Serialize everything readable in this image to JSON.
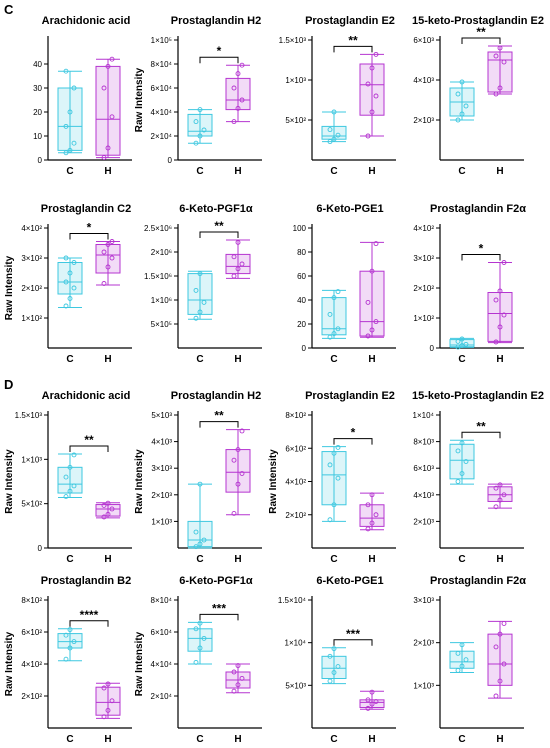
{
  "panels": [
    {
      "label": "C"
    },
    {
      "label": "D"
    }
  ],
  "colors": {
    "C": "#3ec8e0",
    "H": "#b535d0",
    "sig": "#000000"
  },
  "chart_data": [
    {
      "type": "box",
      "panel": "C",
      "title": "Arachidonic acid",
      "ylabel": "",
      "ylim": [
        0,
        50
      ],
      "ticks": [
        {
          "v": 0,
          "t": "0"
        },
        {
          "v": 10,
          "t": "10"
        },
        {
          "v": 20,
          "t": "20"
        },
        {
          "v": 30,
          "t": "30"
        },
        {
          "v": 40,
          "t": "40"
        }
      ],
      "categories": [
        "C",
        "H"
      ],
      "boxes": [
        {
          "min": 3,
          "q1": 4,
          "median": 14,
          "q3": 30,
          "max": 37,
          "points": [
            3,
            4,
            7,
            14,
            20,
            30,
            37
          ]
        },
        {
          "min": 1,
          "q1": 2,
          "median": 17,
          "q3": 39,
          "max": 42,
          "points": [
            1,
            5,
            18,
            30,
            39,
            42
          ]
        }
      ],
      "sig": ""
    },
    {
      "type": "box",
      "panel": "C",
      "title": "Prostaglandin H2",
      "ylabel": "Raw Intensity",
      "ylim": [
        0,
        100000
      ],
      "ticks": [
        {
          "v": 0,
          "t": "0"
        },
        {
          "v": 20000,
          "t": "2×10⁴"
        },
        {
          "v": 40000,
          "t": "4×10⁴"
        },
        {
          "v": 60000,
          "t": "6×10⁴"
        },
        {
          "v": 80000,
          "t": "8×10⁴"
        },
        {
          "v": 100000,
          "t": "1×10⁵"
        }
      ],
      "categories": [
        "C",
        "H"
      ],
      "boxes": [
        {
          "min": 14000,
          "q1": 20000,
          "median": 24000,
          "q3": 38000,
          "max": 42000,
          "points": [
            14000,
            20000,
            25000,
            32000,
            42000
          ]
        },
        {
          "min": 32000,
          "q1": 42000,
          "median": 50000,
          "q3": 68000,
          "max": 79000,
          "points": [
            32000,
            43000,
            50000,
            60000,
            72000,
            79000
          ]
        }
      ],
      "sig": "*"
    },
    {
      "type": "box",
      "panel": "C",
      "title": "Prostaglandin E2",
      "ylabel": "",
      "ylim": [
        0,
        1500
      ],
      "ticks": [
        {
          "v": 500,
          "t": "5×10²"
        },
        {
          "v": 1000,
          "t": "1×10³"
        },
        {
          "v": 1500,
          "t": "1.5×10³"
        }
      ],
      "categories": [
        "C",
        "H"
      ],
      "boxes": [
        {
          "min": 230,
          "q1": 260,
          "median": 300,
          "q3": 420,
          "max": 600,
          "points": [
            230,
            260,
            310,
            380,
            600
          ]
        },
        {
          "min": 300,
          "q1": 560,
          "median": 940,
          "q3": 1200,
          "max": 1320,
          "points": [
            300,
            600,
            800,
            950,
            1150,
            1320
          ]
        }
      ],
      "sig": "**"
    },
    {
      "type": "box",
      "panel": "C",
      "title": "15-keto-Prostaglandin E2",
      "ylabel": "",
      "ylim": [
        0,
        6000
      ],
      "ticks": [
        {
          "v": 2000,
          "t": "2×10³"
        },
        {
          "v": 4000,
          "t": "4×10³"
        },
        {
          "v": 6000,
          "t": "6×10³"
        }
      ],
      "categories": [
        "C",
        "H"
      ],
      "boxes": [
        {
          "min": 2000,
          "q1": 2200,
          "median": 2900,
          "q3": 3600,
          "max": 3900,
          "points": [
            2000,
            2300,
            2700,
            3300,
            3900
          ]
        },
        {
          "min": 3300,
          "q1": 3400,
          "median": 5000,
          "q3": 5400,
          "max": 5700,
          "points": [
            3300,
            3600,
            4900,
            5200,
            5600
          ]
        }
      ],
      "sig": "**"
    },
    {
      "type": "box",
      "panel": "C",
      "title": "Prostaglandin C2",
      "ylabel": "Raw Intensity",
      "ylim": [
        0,
        400
      ],
      "ticks": [
        {
          "v": 100,
          "t": "1×10²"
        },
        {
          "v": 200,
          "t": "2×10²"
        },
        {
          "v": 300,
          "t": "3×10²"
        },
        {
          "v": 400,
          "t": "4×10²"
        }
      ],
      "categories": [
        "C",
        "H"
      ],
      "boxes": [
        {
          "min": 135,
          "q1": 180,
          "median": 220,
          "q3": 285,
          "max": 300,
          "points": [
            140,
            165,
            200,
            220,
            250,
            285,
            300
          ]
        },
        {
          "min": 210,
          "q1": 250,
          "median": 310,
          "q3": 345,
          "max": 355,
          "points": [
            215,
            270,
            300,
            320,
            345,
            355
          ]
        }
      ],
      "sig": "*"
    },
    {
      "type": "box",
      "panel": "C",
      "title": "6-Keto-PGF1α",
      "ylabel": "",
      "ylim": [
        0,
        2500000
      ],
      "ticks": [
        {
          "v": 500000,
          "t": "5×10⁵"
        },
        {
          "v": 1000000,
          "t": "1×10⁶"
        },
        {
          "v": 1500000,
          "t": "1.5×10⁶"
        },
        {
          "v": 2000000,
          "t": "2×10⁶"
        },
        {
          "v": 2500000,
          "t": "2.5×10⁶"
        }
      ],
      "categories": [
        "C",
        "H"
      ],
      "boxes": [
        {
          "min": 600000,
          "q1": 700000,
          "median": 1000000,
          "q3": 1550000,
          "max": 1600000,
          "points": [
            620000,
            750000,
            950000,
            1200000,
            1550000
          ]
        },
        {
          "min": 1450000,
          "q1": 1550000,
          "median": 1700000,
          "q3": 1950000,
          "max": 2250000,
          "points": [
            1500000,
            1650000,
            1750000,
            1900000,
            2200000
          ]
        }
      ],
      "sig": "**"
    },
    {
      "type": "box",
      "panel": "C",
      "title": "6-Keto-PGE1",
      "ylabel": "",
      "ylim": [
        0,
        100
      ],
      "ticks": [
        {
          "v": 0,
          "t": "0"
        },
        {
          "v": 20,
          "t": "20"
        },
        {
          "v": 40,
          "t": "40"
        },
        {
          "v": 60,
          "t": "60"
        },
        {
          "v": 80,
          "t": "80"
        },
        {
          "v": 100,
          "t": "100"
        }
      ],
      "categories": [
        "C",
        "H"
      ],
      "boxes": [
        {
          "min": 8,
          "q1": 11,
          "median": 16,
          "q3": 42,
          "max": 48,
          "points": [
            9,
            12,
            16,
            28,
            42,
            47
          ]
        },
        {
          "min": 9,
          "q1": 10,
          "median": 22,
          "q3": 64,
          "max": 88,
          "points": [
            10,
            15,
            22,
            38,
            64,
            87
          ]
        }
      ],
      "sig": ""
    },
    {
      "type": "box",
      "panel": "C",
      "title": "Prostaglandin F2α",
      "ylabel": "",
      "ylim": [
        0,
        400
      ],
      "ticks": [
        {
          "v": 0,
          "t": "0"
        },
        {
          "v": 100,
          "t": "1×10²"
        },
        {
          "v": 200,
          "t": "2×10²"
        },
        {
          "v": 300,
          "t": "3×10²"
        },
        {
          "v": 400,
          "t": "4×10²"
        }
      ],
      "categories": [
        "C",
        "H"
      ],
      "boxes": [
        {
          "min": 2,
          "q1": 4,
          "median": 10,
          "q3": 28,
          "max": 32,
          "points": [
            3,
            8,
            12,
            22,
            30
          ]
        },
        {
          "min": 18,
          "q1": 22,
          "median": 115,
          "q3": 185,
          "max": 285,
          "points": [
            20,
            70,
            110,
            160,
            190,
            285
          ]
        }
      ],
      "sig": "*"
    },
    {
      "type": "box",
      "panel": "D",
      "title": "Arachidonic acid",
      "ylabel": "Raw Intensity",
      "ylim": [
        0,
        1500
      ],
      "ticks": [
        {
          "v": 0,
          "t": "0"
        },
        {
          "v": 500,
          "t": "5×10²"
        },
        {
          "v": 1000,
          "t": "1×10³"
        },
        {
          "v": 1500,
          "t": "1.5×10³"
        }
      ],
      "categories": [
        "C",
        "H"
      ],
      "boxes": [
        {
          "min": 570,
          "q1": 620,
          "median": 720,
          "q3": 910,
          "max": 1060,
          "points": [
            580,
            640,
            700,
            800,
            910,
            1050
          ]
        },
        {
          "min": 340,
          "q1": 360,
          "median": 440,
          "q3": 490,
          "max": 510,
          "points": [
            350,
            380,
            440,
            480,
            505
          ]
        }
      ],
      "sig": "**"
    },
    {
      "type": "box",
      "panel": "D",
      "title": "Prostaglandin H2",
      "ylabel": "Raw Intensity",
      "ylim": [
        0,
        5000
      ],
      "ticks": [
        {
          "v": 1000,
          "t": "1×10³"
        },
        {
          "v": 2000,
          "t": "2×10³"
        },
        {
          "v": 3000,
          "t": "3×10³"
        },
        {
          "v": 4000,
          "t": "4×10³"
        },
        {
          "v": 5000,
          "t": "5×10³"
        }
      ],
      "categories": [
        "C",
        "H"
      ],
      "boxes": [
        {
          "min": 0,
          "q1": 50,
          "median": 300,
          "q3": 1000,
          "max": 2400,
          "points": [
            50,
            150,
            300,
            600,
            2400
          ]
        },
        {
          "min": 1250,
          "q1": 2100,
          "median": 2850,
          "q3": 3700,
          "max": 4450,
          "points": [
            1300,
            2400,
            2800,
            3300,
            3700,
            4400
          ]
        }
      ],
      "sig": "**"
    },
    {
      "type": "box",
      "panel": "D",
      "title": "Prostaglandin E2",
      "ylabel": "Raw Intensity",
      "ylim": [
        0,
        800
      ],
      "ticks": [
        {
          "v": 200,
          "t": "2×10²"
        },
        {
          "v": 400,
          "t": "4×10²"
        },
        {
          "v": 600,
          "t": "6×10²"
        },
        {
          "v": 800,
          "t": "8×10²"
        }
      ],
      "categories": [
        "C",
        "H"
      ],
      "boxes": [
        {
          "min": 160,
          "q1": 260,
          "median": 440,
          "q3": 580,
          "max": 610,
          "points": [
            170,
            260,
            420,
            500,
            570,
            605
          ]
        },
        {
          "min": 110,
          "q1": 130,
          "median": 180,
          "q3": 260,
          "max": 330,
          "points": [
            115,
            150,
            200,
            260,
            320
          ]
        }
      ],
      "sig": "*"
    },
    {
      "type": "box",
      "panel": "D",
      "title": "15-keto-Prostaglandin E2",
      "ylabel": "",
      "ylim": [
        0,
        10000
      ],
      "ticks": [
        {
          "v": 2000,
          "t": "2×10³"
        },
        {
          "v": 4000,
          "t": "4×10³"
        },
        {
          "v": 6000,
          "t": "6×10³"
        },
        {
          "v": 8000,
          "t": "8×10³"
        },
        {
          "v": 10000,
          "t": "1×10⁴"
        }
      ],
      "categories": [
        "C",
        "H"
      ],
      "boxes": [
        {
          "min": 4800,
          "q1": 5200,
          "median": 6600,
          "q3": 7800,
          "max": 8100,
          "points": [
            5000,
            5600,
            6500,
            7300,
            7900
          ]
        },
        {
          "min": 3000,
          "q1": 3500,
          "median": 4000,
          "q3": 4600,
          "max": 4800,
          "points": [
            3100,
            3600,
            4000,
            4500,
            4750
          ]
        }
      ],
      "sig": "**"
    },
    {
      "type": "box",
      "panel": "D",
      "title": "Prostaglandin B2",
      "ylabel": "Raw Intensity",
      "ylim": [
        0,
        800
      ],
      "ticks": [
        {
          "v": 200,
          "t": "2×10²"
        },
        {
          "v": 400,
          "t": "4×10²"
        },
        {
          "v": 600,
          "t": "6×10²"
        },
        {
          "v": 800,
          "t": "8×10²"
        }
      ],
      "categories": [
        "C",
        "H"
      ],
      "boxes": [
        {
          "min": 420,
          "q1": 500,
          "median": 540,
          "q3": 590,
          "max": 620,
          "points": [
            430,
            500,
            540,
            580,
            615
          ]
        },
        {
          "min": 60,
          "q1": 80,
          "median": 160,
          "q3": 255,
          "max": 280,
          "points": [
            70,
            110,
            170,
            250,
            275
          ]
        }
      ],
      "sig": "****"
    },
    {
      "type": "box",
      "panel": "D",
      "title": "6-Keto-PGF1α",
      "ylabel": "Raw Intensity",
      "ylim": [
        0,
        80000
      ],
      "ticks": [
        {
          "v": 20000,
          "t": "2×10⁴"
        },
        {
          "v": 40000,
          "t": "4×10⁴"
        },
        {
          "v": 60000,
          "t": "6×10⁴"
        },
        {
          "v": 80000,
          "t": "8×10⁴"
        }
      ],
      "categories": [
        "C",
        "H"
      ],
      "boxes": [
        {
          "min": 40000,
          "q1": 48000,
          "median": 56000,
          "q3": 62000,
          "max": 66000,
          "points": [
            41000,
            50000,
            56000,
            62000,
            65500
          ]
        },
        {
          "min": 22000,
          "q1": 25000,
          "median": 30000,
          "q3": 35000,
          "max": 40000,
          "points": [
            23000,
            27000,
            31000,
            35000,
            39000
          ]
        }
      ],
      "sig": "***"
    },
    {
      "type": "box",
      "panel": "D",
      "title": "6-Keto-PGE1",
      "ylabel": "",
      "ylim": [
        0,
        15000
      ],
      "ticks": [
        {
          "v": 5000,
          "t": "5×10³"
        },
        {
          "v": 10000,
          "t": "1×10⁴"
        },
        {
          "v": 15000,
          "t": "1.5×10⁴"
        }
      ],
      "categories": [
        "C",
        "H"
      ],
      "boxes": [
        {
          "min": 5200,
          "q1": 5800,
          "median": 7000,
          "q3": 8400,
          "max": 9400,
          "points": [
            5500,
            6500,
            7200,
            8400,
            9300
          ]
        },
        {
          "min": 2200,
          "q1": 2400,
          "median": 3000,
          "q3": 3300,
          "max": 4300,
          "points": [
            2300,
            2800,
            3100,
            3300,
            4200
          ]
        }
      ],
      "sig": "***"
    },
    {
      "type": "box",
      "panel": "D",
      "title": "Prostaglandin F2α",
      "ylabel": "",
      "ylim": [
        0,
        3000
      ],
      "ticks": [
        {
          "v": 1000,
          "t": "1×10³"
        },
        {
          "v": 2000,
          "t": "2×10³"
        },
        {
          "v": 3000,
          "t": "3×10³"
        }
      ],
      "categories": [
        "C",
        "H"
      ],
      "boxes": [
        {
          "min": 1300,
          "q1": 1400,
          "median": 1550,
          "q3": 1800,
          "max": 2000,
          "points": [
            1350,
            1450,
            1600,
            1750,
            1950
          ]
        },
        {
          "min": 700,
          "q1": 1000,
          "median": 1500,
          "q3": 2200,
          "max": 2500,
          "points": [
            750,
            1100,
            1500,
            1900,
            2200,
            2450
          ]
        }
      ],
      "sig": ""
    }
  ]
}
